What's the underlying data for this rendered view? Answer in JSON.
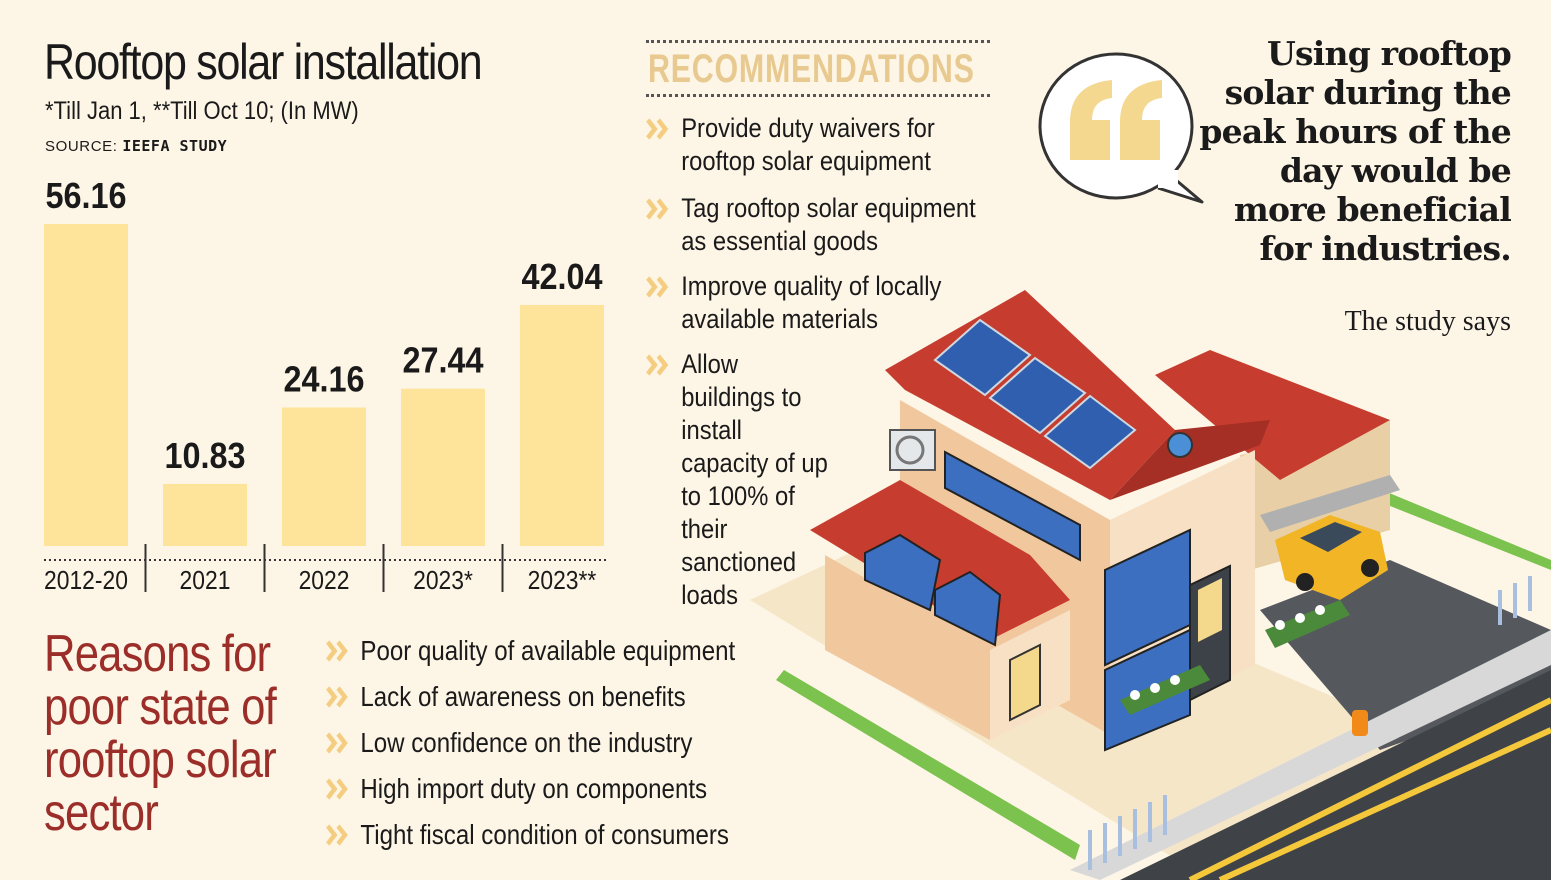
{
  "header": {
    "title": "Rooftop solar installation",
    "subtitle": "*Till Jan 1, **Till Oct 10; (In MW)",
    "source_label": "SOURCE:",
    "source_name": "IEEFA STUDY"
  },
  "chart_data": {
    "type": "bar",
    "title": "Rooftop solar installation",
    "categories": [
      "2012-20",
      "2021",
      "2022",
      "2023*",
      "2023**"
    ],
    "values": [
      56.16,
      10.83,
      24.16,
      27.44,
      42.04
    ],
    "value_labels": [
      "56.16",
      "10.83",
      "24.16",
      "27.44",
      "42.04"
    ],
    "unit": "MW",
    "ylim": [
      0,
      56.16
    ],
    "grid": false,
    "legend": "none",
    "bar_color": "#fde49a"
  },
  "recommendations": {
    "title": "RECOMMENDATIONS",
    "items": [
      "Provide duty waivers for rooftop solar equipment",
      "Tag rooftop solar equipment as essential goods",
      "Improve quality of locally available materials",
      "Allow buildings to install capacity of up to 100% of their sanctioned loads"
    ]
  },
  "reasons": {
    "title_lines": [
      "Reasons for",
      "poor state of",
      "rooftop solar",
      "sector"
    ],
    "items": [
      "Poor quality of available equipment",
      "Lack of awareness on benefits",
      "Low confidence on the industry",
      "High import duty on components",
      "Tight fiscal condition of consumers"
    ]
  },
  "quote": {
    "text": "Using rooftop solar during the peak hours of the day would be more beneficial for industries.",
    "attribution": "The study says"
  },
  "colors": {
    "accent": "#e8c98f",
    "bar": "#fde49a",
    "reasons_title": "#9b2e29",
    "chevron": "#f5cd80",
    "background": "#fdf5e6"
  },
  "icons": [
    "chevron-right-icon",
    "quote-bubble-icon",
    "house-illustration"
  ]
}
